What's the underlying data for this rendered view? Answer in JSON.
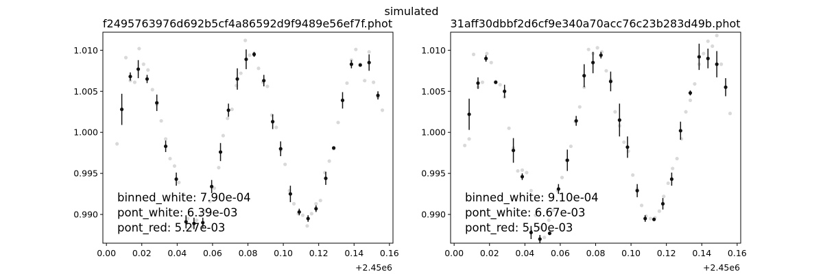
{
  "figure": {
    "suptitle": "simulated"
  },
  "colors": {
    "binned": "#111111",
    "unbinned": "#d9d9d9",
    "axes": "#000000"
  },
  "chart_data": [
    {
      "type": "scatter",
      "title": "f2495763976d692b5cf4a86592d9f9489e56ef7f.phot",
      "xlabel": "",
      "ylabel": "",
      "xlim": [
        -0.002,
        0.162
      ],
      "ylim": [
        0.9865,
        1.0122
      ],
      "x_ticks": [
        "0.00",
        "0.02",
        "0.04",
        "0.06",
        "0.08",
        "0.10",
        "0.12",
        "0.14",
        "0.16"
      ],
      "x_tick_values": [
        0.0,
        0.02,
        0.04,
        0.06,
        0.08,
        0.1,
        0.12,
        0.14,
        0.16
      ],
      "y_ticks": [
        "0.990",
        "0.995",
        "1.000",
        "1.005",
        "1.010"
      ],
      "y_tick_values": [
        0.99,
        0.995,
        1.0,
        1.005,
        1.01
      ],
      "x_offset_label": "+2.45e6",
      "grid": false,
      "stats": [
        "binned_white: 7.90e-04",
        "pont_white: 6.39e-03",
        "pont_red: 5.27e-03"
      ],
      "unbinned": [
        [
          0.006,
          0.9986
        ],
        [
          0.011,
          1.0091
        ],
        [
          0.0135,
          1.0063
        ],
        [
          0.016,
          1.0061
        ],
        [
          0.0185,
          1.0102
        ],
        [
          0.021,
          1.0083
        ],
        [
          0.0235,
          1.0076
        ],
        [
          0.026,
          1.0052
        ],
        [
          0.0285,
          1.0034
        ],
        [
          0.031,
          1.0014
        ],
        [
          0.0335,
          0.9992
        ],
        [
          0.036,
          0.9968
        ],
        [
          0.0385,
          0.9959
        ],
        [
          0.041,
          0.9939
        ],
        [
          0.0435,
          0.9925
        ],
        [
          0.046,
          0.9895
        ],
        [
          0.0485,
          0.9885
        ],
        [
          0.051,
          0.9893
        ],
        [
          0.0535,
          0.9899
        ],
        [
          0.056,
          0.9904
        ],
        [
          0.0585,
          0.9916
        ],
        [
          0.061,
          0.9932
        ],
        [
          0.0635,
          0.9957
        ],
        [
          0.066,
          0.9996
        ],
        [
          0.0685,
          1.0017
        ],
        [
          0.071,
          1.0028
        ],
        [
          0.0735,
          1.0057
        ],
        [
          0.076,
          1.0072
        ],
        [
          0.0785,
          1.0112
        ],
        [
          0.081,
          1.0094
        ],
        [
          0.0835,
          1.0096
        ],
        [
          0.086,
          1.0078
        ],
        [
          0.0885,
          1.0061
        ],
        [
          0.091,
          1.0056
        ],
        [
          0.0935,
          1.0021
        ],
        [
          0.096,
          1.0006
        ],
        [
          0.0985,
          0.9978
        ],
        [
          0.101,
          0.9961
        ],
        [
          0.1035,
          0.9929
        ],
        [
          0.106,
          0.9913
        ],
        [
          0.1085,
          0.9901
        ],
        [
          0.111,
          0.9899
        ],
        [
          0.1135,
          0.9886
        ],
        [
          0.116,
          0.9901
        ],
        [
          0.1185,
          0.9913
        ],
        [
          0.121,
          0.9917
        ],
        [
          0.1235,
          0.9951
        ],
        [
          0.126,
          0.9965
        ],
        [
          0.1285,
          0.998
        ],
        [
          0.131,
          1.0012
        ],
        [
          0.1335,
          1.0039
        ],
        [
          0.136,
          1.006
        ],
        [
          0.1385,
          1.0088
        ],
        [
          0.141,
          1.0101
        ],
        [
          0.1435,
          1.0083
        ],
        [
          0.146,
          1.0063
        ],
        [
          0.1485,
          1.0098
        ],
        [
          0.151,
          1.0061
        ],
        [
          0.1535,
          1.0043
        ],
        [
          0.156,
          1.0027
        ]
      ],
      "binned": [
        {
          "x": 0.0087,
          "y": 1.0028,
          "err": 0.0019
        },
        {
          "x": 0.0135,
          "y": 1.0068,
          "err": 0.0005
        },
        {
          "x": 0.018,
          "y": 1.0077,
          "err": 0.0011
        },
        {
          "x": 0.023,
          "y": 1.0065,
          "err": 0.0005
        },
        {
          "x": 0.0285,
          "y": 1.0036,
          "err": 0.001
        },
        {
          "x": 0.0335,
          "y": 0.9983,
          "err": 0.0007
        },
        {
          "x": 0.0395,
          "y": 0.9943,
          "err": 0.0008
        },
        {
          "x": 0.045,
          "y": 0.9891,
          "err": 0.0008
        },
        {
          "x": 0.0495,
          "y": 0.9889,
          "err": 0.0007
        },
        {
          "x": 0.0545,
          "y": 0.989,
          "err": 0.0006
        },
        {
          "x": 0.0595,
          "y": 0.9934,
          "err": 0.0008
        },
        {
          "x": 0.0645,
          "y": 0.9976,
          "err": 0.0011
        },
        {
          "x": 0.069,
          "y": 1.0027,
          "err": 0.0008
        },
        {
          "x": 0.074,
          "y": 1.0065,
          "err": 0.0013
        },
        {
          "x": 0.079,
          "y": 1.0089,
          "err": 0.0012
        },
        {
          "x": 0.0835,
          "y": 1.0095,
          "err": 0.0003
        },
        {
          "x": 0.089,
          "y": 1.0063,
          "err": 0.0007
        },
        {
          "x": 0.094,
          "y": 1.0013,
          "err": 0.0009
        },
        {
          "x": 0.0985,
          "y": 0.998,
          "err": 0.0009
        },
        {
          "x": 0.104,
          "y": 0.9925,
          "err": 0.001
        },
        {
          "x": 0.109,
          "y": 0.9903,
          "err": 0.0004
        },
        {
          "x": 0.114,
          "y": 0.9895,
          "err": 0.0004
        },
        {
          "x": 0.1185,
          "y": 0.9907,
          "err": 0.0004
        },
        {
          "x": 0.124,
          "y": 0.9944,
          "err": 0.0008
        },
        {
          "x": 0.1285,
          "y": 0.9981,
          "err": 0.0002
        },
        {
          "x": 0.1335,
          "y": 1.0039,
          "err": 0.001
        },
        {
          "x": 0.1385,
          "y": 1.0083,
          "err": 0.0005
        },
        {
          "x": 0.1435,
          "y": 1.0082,
          "err": 0.0002
        },
        {
          "x": 0.1485,
          "y": 1.0085,
          "err": 0.001
        },
        {
          "x": 0.1535,
          "y": 1.0045,
          "err": 0.0005
        }
      ]
    },
    {
      "type": "scatter",
      "title": "31aff30dbbf2d6cf9e340a70acc76c23b283d49b.phot",
      "xlabel": "",
      "ylabel": "",
      "xlim": [
        -0.002,
        0.162
      ],
      "ylim": [
        0.9865,
        1.0122
      ],
      "x_ticks": [
        "0.00",
        "0.02",
        "0.04",
        "0.06",
        "0.08",
        "0.10",
        "0.12",
        "0.14",
        "0.16"
      ],
      "x_tick_values": [
        0.0,
        0.02,
        0.04,
        0.06,
        0.08,
        0.1,
        0.12,
        0.14,
        0.16
      ],
      "y_ticks": [
        "0.990",
        "0.995",
        "1.000",
        "1.005",
        "1.010"
      ],
      "y_tick_values": [
        0.99,
        0.995,
        1.0,
        1.005,
        1.01
      ],
      "x_offset_label": "+2.45e6",
      "grid": false,
      "stats": [
        "binned_white: 9.10e-04",
        "pont_white: 6.67e-03",
        "pont_red: 5.50e-03"
      ],
      "unbinned": [
        [
          0.006,
          0.9984
        ],
        [
          0.0085,
          0.9992
        ],
        [
          0.011,
          1.0095
        ],
        [
          0.0135,
          1.0055
        ],
        [
          0.016,
          1.0061
        ],
        [
          0.0185,
          1.0096
        ],
        [
          0.021,
          1.0085
        ],
        [
          0.0235,
          1.0062
        ],
        [
          0.026,
          1.0058
        ],
        [
          0.0285,
          1.0043
        ],
        [
          0.031,
          1.0005
        ],
        [
          0.0335,
          0.9981
        ],
        [
          0.036,
          0.9953
        ],
        [
          0.0385,
          0.9954
        ],
        [
          0.041,
          0.9951
        ],
        [
          0.0435,
          0.9929
        ],
        [
          0.046,
          0.9899
        ],
        [
          0.0485,
          0.9884
        ],
        [
          0.051,
          0.9872
        ],
        [
          0.0535,
          0.9893
        ],
        [
          0.056,
          0.9905
        ],
        [
          0.0585,
          0.9929
        ],
        [
          0.061,
          0.9945
        ],
        [
          0.0635,
          0.9966
        ],
        [
          0.066,
          0.9983
        ],
        [
          0.0685,
          1.0013
        ],
        [
          0.071,
          1.0031
        ],
        [
          0.0735,
          1.0055
        ],
        [
          0.076,
          1.0101
        ],
        [
          0.0785,
          1.0096
        ],
        [
          0.081,
          1.0103
        ],
        [
          0.0835,
          1.0098
        ],
        [
          0.086,
          1.0075
        ],
        [
          0.0885,
          1.0064
        ],
        [
          0.091,
          1.0025
        ],
        [
          0.0935,
          1.0008
        ],
        [
          0.096,
          0.9988
        ],
        [
          0.0985,
          0.9977
        ],
        [
          0.101,
          0.9948
        ],
        [
          0.1035,
          0.9931
        ],
        [
          0.106,
          0.9911
        ],
        [
          0.1085,
          0.9898
        ],
        [
          0.111,
          0.9895
        ],
        [
          0.1135,
          0.9896
        ],
        [
          0.116,
          0.9904
        ],
        [
          0.1185,
          0.9922
        ],
        [
          0.121,
          0.9938
        ],
        [
          0.1235,
          0.9956
        ],
        [
          0.126,
          0.9968
        ],
        [
          0.1285,
          0.9992
        ],
        [
          0.131,
          1.0025
        ],
        [
          0.1335,
          1.0039
        ],
        [
          0.136,
          1.0059
        ],
        [
          0.1385,
          1.0083
        ],
        [
          0.141,
          1.0096
        ],
        [
          0.1435,
          1.0111
        ],
        [
          0.146,
          1.0105
        ],
        [
          0.1485,
          1.0118
        ],
        [
          0.151,
          1.0083
        ],
        [
          0.156,
          1.0023
        ]
      ],
      "binned": [
        {
          "x": 0.0085,
          "y": 1.0022,
          "err": 0.0019
        },
        {
          "x": 0.0135,
          "y": 1.006,
          "err": 0.0007
        },
        {
          "x": 0.018,
          "y": 1.009,
          "err": 0.0004
        },
        {
          "x": 0.0235,
          "y": 1.0061,
          "err": 0.0002
        },
        {
          "x": 0.0285,
          "y": 1.005,
          "err": 0.0008
        },
        {
          "x": 0.0335,
          "y": 0.9978,
          "err": 0.0015
        },
        {
          "x": 0.0385,
          "y": 0.9946,
          "err": 0.0004
        },
        {
          "x": 0.0435,
          "y": 0.9878,
          "err": 0.0008
        },
        {
          "x": 0.0485,
          "y": 0.987,
          "err": 0.0005
        },
        {
          "x": 0.054,
          "y": 0.9877,
          "err": 0.0002
        },
        {
          "x": 0.059,
          "y": 0.9931,
          "err": 0.0006
        },
        {
          "x": 0.064,
          "y": 0.9966,
          "err": 0.0013
        },
        {
          "x": 0.069,
          "y": 1.0014,
          "err": 0.0006
        },
        {
          "x": 0.0735,
          "y": 1.0069,
          "err": 0.0014
        },
        {
          "x": 0.0785,
          "y": 1.0085,
          "err": 0.0013
        },
        {
          "x": 0.083,
          "y": 1.0094,
          "err": 0.0004
        },
        {
          "x": 0.0885,
          "y": 1.0062,
          "err": 0.0012
        },
        {
          "x": 0.0935,
          "y": 1.0015,
          "err": 0.002
        },
        {
          "x": 0.098,
          "y": 0.9982,
          "err": 0.0013
        },
        {
          "x": 0.1035,
          "y": 0.9929,
          "err": 0.0008
        },
        {
          "x": 0.108,
          "y": 0.9895,
          "err": 0.0004
        },
        {
          "x": 0.113,
          "y": 0.9894,
          "err": 0.0002
        },
        {
          "x": 0.118,
          "y": 0.9913,
          "err": 0.0007
        },
        {
          "x": 0.123,
          "y": 0.9943,
          "err": 0.0008
        },
        {
          "x": 0.128,
          "y": 1.0002,
          "err": 0.0011
        },
        {
          "x": 0.1335,
          "y": 1.0048,
          "err": 0.0003
        },
        {
          "x": 0.1385,
          "y": 1.0092,
          "err": 0.0016
        },
        {
          "x": 0.1435,
          "y": 1.009,
          "err": 0.0012
        },
        {
          "x": 0.1485,
          "y": 1.0083,
          "err": 0.0016
        },
        {
          "x": 0.1535,
          "y": 1.0055,
          "err": 0.0011
        }
      ]
    }
  ]
}
